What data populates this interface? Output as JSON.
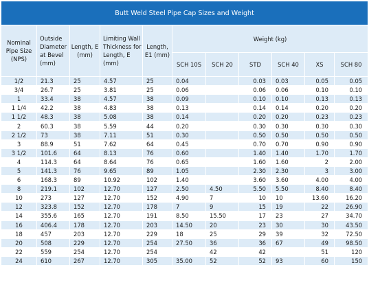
{
  "title": "Butt Weld Steel Pipe Cap Sizes and Weight",
  "headers": {
    "nps": "Nominal Pipe Size (NPS)",
    "od": "Outside Diameter at Bevel (mm)",
    "length_e": "Length, E (mm)",
    "limiting_wall": "Limiting Wall Thickness for Length, E (mm)",
    "length_e1": "Length, E1 (mm)",
    "weight": "Weight (kg)",
    "sch10s": "SCH 10S",
    "sch20": "SCH 20",
    "std": "STD",
    "sch40": "SCH 40",
    "xs": "XS",
    "sch80": "SCH 80"
  },
  "rows": [
    [
      "1/2",
      "21.3",
      "25",
      "4.57",
      "25",
      "0.04",
      "",
      "0.03",
      "0.03",
      "0.05",
      "0.05"
    ],
    [
      "3/4",
      "26.7",
      "25",
      "3.81",
      "25",
      "0.06",
      "",
      "0.06",
      "0.06",
      "0.10",
      "0.10"
    ],
    [
      "1",
      "33.4",
      "38",
      "4.57",
      "38",
      "0.09",
      "",
      "0.10",
      "0.10",
      "0.13",
      "0.13"
    ],
    [
      "1 1/4",
      "42.2",
      "38",
      "4.83",
      "38",
      "0.13",
      "",
      "0.14",
      "0.14",
      "0.20",
      "0.20"
    ],
    [
      "1 1/2",
      "48.3",
      "38",
      "5.08",
      "38",
      "0.14",
      "",
      "0.20",
      "0.20",
      "0.23",
      "0.23"
    ],
    [
      "2",
      "60.3",
      "38",
      "5.59",
      "44",
      "0.20",
      "",
      "0.30",
      "0.30",
      "0.30",
      "0.30"
    ],
    [
      "2 1/2",
      "73",
      "38",
      "7.11",
      "51",
      "0.30",
      "",
      "0.50",
      "0.50",
      "0.50",
      "0.50"
    ],
    [
      "3",
      "88.9",
      "51",
      "7.62",
      "64",
      "0.45",
      "",
      "0.70",
      "0.70",
      "0.90",
      "0.90"
    ],
    [
      "3 1/2",
      "101.6",
      "64",
      "8.13",
      "76",
      "0.60",
      "",
      "1.40",
      "1.40",
      "1.70",
      "1.70"
    ],
    [
      "4",
      "114.3",
      "64",
      "8.64",
      "76",
      "0.65",
      "",
      "1.60",
      "1.60",
      "2",
      "2.00"
    ],
    [
      "5",
      "141.3",
      "76",
      "9.65",
      "89",
      "1.05",
      "",
      "2.30",
      "2.30",
      "3",
      "3.00"
    ],
    [
      "6",
      "168.3",
      "89",
      "10.92",
      "102",
      "1.40",
      "",
      "3.60",
      "3.60",
      "4.00",
      "4.00"
    ],
    [
      "8",
      "219.1",
      "102",
      "12.70",
      "127",
      "2.50",
      "4.50",
      "5.50",
      "5.50",
      "8.40",
      "8.40"
    ],
    [
      "10",
      "273",
      "127",
      "12.70",
      "152",
      "4.90",
      "7",
      "10",
      "10",
      "13.60",
      "16.20"
    ],
    [
      "12",
      "323.8",
      "152",
      "12.70",
      "178",
      "7",
      "9",
      "15",
      "19",
      "22",
      "26.90"
    ],
    [
      "14",
      "355.6",
      "165",
      "12.70",
      "191",
      "8.50",
      "15.50",
      "17",
      "23",
      "27",
      "34.70"
    ],
    [
      "16",
      "406.4",
      "178",
      "12.70",
      "203",
      "14.50",
      "20",
      "23",
      "30",
      "30",
      "43.50"
    ],
    [
      "18",
      "457",
      "203",
      "12.70",
      "229",
      "18",
      "25",
      "29",
      "39",
      "32",
      "72.50"
    ],
    [
      "20",
      "508",
      "229",
      "12.70",
      "254",
      "27.50",
      "36",
      "36",
      "67",
      "49",
      "98.50"
    ],
    [
      "22",
      "559",
      "254",
      "12.70",
      "254",
      "",
      "42",
      "42",
      "",
      "51",
      "120"
    ],
    [
      "24",
      "610",
      "267",
      "12.70",
      "305",
      "35.00",
      "52",
      "52",
      "93",
      "60",
      "150"
    ]
  ]
}
